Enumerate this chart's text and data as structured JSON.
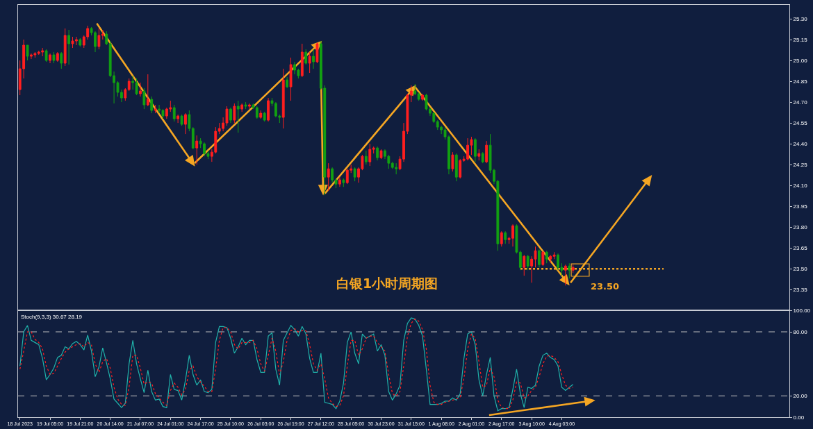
{
  "chart_data": [
    {
      "type": "candlestick",
      "categories": [
        null,
        null,
        null,
        null,
        null,
        null,
        null,
        null,
        null,
        null,
        null,
        null,
        null,
        null,
        null,
        null,
        null,
        null,
        null,
        null,
        null,
        null,
        null,
        null,
        null,
        null,
        null,
        null,
        null,
        null,
        null,
        null,
        null,
        null,
        null,
        null,
        null,
        null,
        null,
        null,
        null,
        null,
        null,
        null,
        null,
        null,
        null,
        null,
        null,
        null,
        null,
        null,
        null,
        null,
        null,
        null,
        null,
        null,
        null,
        null,
        null,
        null,
        null,
        null,
        null,
        null,
        null,
        null,
        null,
        null,
        null,
        null,
        null,
        null,
        null,
        null,
        null,
        null,
        null,
        null,
        null,
        null,
        null,
        null,
        null,
        null,
        null,
        null,
        null,
        null,
        null,
        null,
        null,
        null,
        null,
        null,
        null,
        null,
        null,
        null,
        null,
        null,
        null,
        null,
        null,
        null,
        null,
        null,
        null,
        null,
        null,
        null,
        null,
        null,
        null,
        null,
        null,
        null,
        null,
        null,
        null,
        null,
        null,
        null,
        null,
        null,
        null,
        null,
        null,
        null,
        null,
        null,
        null,
        null,
        null,
        null,
        null,
        null,
        null,
        null,
        null,
        null,
        null,
        null,
        null,
        null,
        null,
        null,
        null,
        null,
        null,
        null,
        null,
        null,
        null,
        null,
        null,
        null,
        null,
        null,
        null,
        null,
        null,
        null,
        null,
        null,
        null,
        null,
        null,
        null,
        null,
        null,
        null,
        null,
        null,
        null,
        null,
        null,
        null,
        null,
        null,
        null,
        null,
        null,
        null,
        null,
        null,
        null,
        null,
        null,
        null,
        null,
        null,
        null,
        null,
        null,
        null,
        null,
        null,
        null,
        null,
        null,
        null,
        null,
        null
      ],
      "ohlc": [
        [
          24.79,
          25.0,
          24.75,
          24.94
        ],
        [
          24.94,
          25.15,
          24.87,
          25.11
        ],
        [
          25.11,
          25.11,
          25.0,
          25.03
        ],
        [
          25.03,
          25.05,
          25.01,
          25.04
        ],
        [
          25.04,
          25.06,
          25.02,
          25.05
        ],
        [
          25.05,
          25.07,
          25.04,
          25.06
        ],
        [
          25.06,
          25.09,
          25.03,
          25.07
        ],
        [
          25.07,
          25.08,
          24.99,
          25.0
        ],
        [
          25.0,
          25.05,
          24.98,
          25.04
        ],
        [
          25.04,
          25.06,
          24.98,
          25.0
        ],
        [
          25.0,
          25.06,
          24.99,
          25.05
        ],
        [
          25.05,
          25.06,
          24.94,
          24.98
        ],
        [
          24.98,
          25.23,
          24.96,
          25.18
        ],
        [
          25.18,
          25.22,
          24.97,
          25.12
        ],
        [
          25.12,
          25.17,
          25.09,
          25.14
        ],
        [
          25.14,
          25.17,
          25.11,
          25.15
        ],
        [
          25.15,
          25.16,
          25.1,
          25.11
        ],
        [
          25.11,
          25.18,
          25.09,
          25.17
        ],
        [
          25.17,
          25.25,
          25.15,
          25.23
        ],
        [
          25.23,
          25.24,
          25.18,
          25.2
        ],
        [
          25.2,
          25.21,
          25.06,
          25.1
        ],
        [
          25.1,
          25.23,
          25.08,
          25.18
        ],
        [
          25.18,
          25.22,
          25.15,
          25.19
        ],
        [
          25.19,
          25.21,
          25.11,
          25.12
        ],
        [
          25.12,
          25.14,
          24.88,
          24.89
        ],
        [
          24.89,
          24.92,
          24.69,
          24.84
        ],
        [
          24.84,
          24.85,
          24.74,
          24.77
        ],
        [
          24.77,
          24.79,
          24.7,
          24.73
        ],
        [
          24.73,
          24.8,
          24.71,
          24.79
        ],
        [
          24.79,
          24.87,
          24.78,
          24.85
        ],
        [
          24.85,
          24.89,
          24.79,
          24.84
        ],
        [
          24.84,
          24.87,
          24.75,
          24.76
        ],
        [
          24.76,
          24.84,
          24.74,
          24.78
        ],
        [
          24.78,
          24.8,
          24.65,
          24.68
        ],
        [
          24.68,
          24.9,
          24.67,
          24.72
        ],
        [
          24.72,
          24.74,
          24.62,
          24.64
        ],
        [
          24.64,
          24.68,
          24.62,
          24.65
        ],
        [
          24.65,
          24.68,
          24.62,
          24.64
        ],
        [
          24.64,
          24.65,
          24.58,
          24.6
        ],
        [
          24.6,
          24.66,
          24.58,
          24.65
        ],
        [
          24.65,
          24.71,
          24.63,
          24.66
        ],
        [
          24.66,
          24.68,
          24.56,
          24.58
        ],
        [
          24.58,
          24.61,
          24.55,
          24.6
        ],
        [
          24.6,
          24.61,
          24.53,
          24.54
        ],
        [
          24.54,
          24.62,
          24.47,
          24.61
        ],
        [
          24.61,
          24.64,
          24.49,
          24.51
        ],
        [
          24.51,
          24.52,
          24.36,
          24.37
        ],
        [
          24.37,
          24.46,
          24.25,
          24.42
        ],
        [
          24.42,
          24.44,
          24.37,
          24.4
        ],
        [
          24.4,
          24.41,
          24.31,
          24.33
        ],
        [
          24.33,
          24.35,
          24.29,
          24.31
        ],
        [
          24.31,
          24.36,
          24.27,
          24.34
        ],
        [
          24.34,
          24.52,
          24.33,
          24.49
        ],
        [
          24.49,
          24.55,
          24.47,
          24.51
        ],
        [
          24.51,
          24.59,
          24.49,
          24.55
        ],
        [
          24.55,
          24.67,
          24.53,
          24.65
        ],
        [
          24.65,
          24.66,
          24.55,
          24.57
        ],
        [
          24.57,
          24.69,
          24.55,
          24.67
        ],
        [
          24.67,
          24.71,
          24.48,
          24.65
        ],
        [
          24.65,
          24.69,
          24.63,
          24.68
        ],
        [
          24.68,
          24.7,
          24.65,
          24.67
        ],
        [
          24.67,
          24.69,
          24.65,
          24.68
        ],
        [
          24.68,
          24.69,
          24.65,
          24.66
        ],
        [
          24.66,
          24.67,
          24.58,
          24.59
        ],
        [
          24.59,
          24.64,
          24.58,
          24.62
        ],
        [
          24.62,
          24.63,
          24.56,
          24.57
        ],
        [
          24.57,
          24.73,
          24.56,
          24.71
        ],
        [
          24.71,
          24.73,
          24.67,
          24.69
        ],
        [
          24.69,
          24.7,
          24.59,
          24.6
        ],
        [
          24.6,
          24.61,
          24.55,
          24.59
        ],
        [
          24.59,
          24.94,
          24.51,
          24.86
        ],
        [
          24.86,
          24.88,
          24.8,
          24.81
        ],
        [
          24.81,
          25.02,
          24.71,
          24.97
        ],
        [
          24.97,
          24.99,
          24.9,
          24.93
        ],
        [
          24.93,
          24.94,
          24.87,
          24.89
        ],
        [
          24.89,
          25.12,
          24.88,
          25.06
        ],
        [
          25.06,
          25.08,
          24.97,
          24.98
        ],
        [
          24.98,
          25.06,
          24.91,
          25.03
        ],
        [
          25.03,
          25.08,
          24.94,
          24.99
        ],
        [
          24.99,
          25.13,
          24.98,
          25.12
        ],
        [
          25.12,
          25.14,
          24.79,
          24.8
        ],
        [
          24.8,
          24.82,
          24.03,
          24.16
        ],
        [
          24.16,
          24.26,
          24.06,
          24.22
        ],
        [
          24.22,
          24.23,
          24.12,
          24.14
        ],
        [
          24.14,
          24.15,
          24.08,
          24.11
        ],
        [
          24.11,
          24.16,
          24.09,
          24.14
        ],
        [
          24.14,
          24.15,
          24.09,
          24.12
        ],
        [
          24.12,
          24.22,
          24.11,
          24.21
        ],
        [
          24.21,
          24.25,
          24.19,
          24.22
        ],
        [
          24.22,
          24.23,
          24.13,
          24.16
        ],
        [
          24.16,
          24.23,
          24.12,
          24.22
        ],
        [
          24.22,
          24.32,
          24.21,
          24.31
        ],
        [
          24.31,
          24.35,
          24.25,
          24.27
        ],
        [
          24.27,
          24.4,
          24.24,
          24.36
        ],
        [
          24.36,
          24.38,
          24.33,
          24.37
        ],
        [
          24.37,
          24.38,
          24.28,
          24.3
        ],
        [
          24.3,
          24.36,
          24.29,
          24.35
        ],
        [
          24.35,
          24.36,
          24.29,
          24.31
        ],
        [
          24.31,
          24.32,
          24.22,
          24.26
        ],
        [
          24.26,
          24.27,
          24.22,
          24.23
        ],
        [
          24.23,
          24.26,
          24.18,
          24.22
        ],
        [
          24.22,
          24.31,
          24.21,
          24.29
        ],
        [
          24.29,
          24.55,
          24.27,
          24.49
        ],
        [
          24.49,
          24.76,
          24.47,
          24.75
        ],
        [
          24.75,
          24.82,
          24.7,
          24.78
        ],
        [
          24.78,
          24.83,
          24.75,
          24.76
        ],
        [
          24.76,
          24.77,
          24.71,
          24.72
        ],
        [
          24.72,
          24.76,
          24.71,
          24.75
        ],
        [
          24.75,
          24.76,
          24.64,
          24.65
        ],
        [
          24.65,
          24.66,
          24.6,
          24.62
        ],
        [
          24.62,
          24.63,
          24.55,
          24.56
        ],
        [
          24.56,
          24.57,
          24.5,
          24.52
        ],
        [
          24.52,
          24.53,
          24.47,
          24.5
        ],
        [
          24.5,
          24.52,
          24.43,
          24.45
        ],
        [
          24.45,
          24.46,
          24.18,
          24.22
        ],
        [
          24.22,
          24.34,
          24.2,
          24.32
        ],
        [
          24.32,
          24.33,
          24.13,
          24.16
        ],
        [
          24.16,
          24.29,
          24.15,
          24.28
        ],
        [
          24.28,
          24.31,
          24.27,
          24.29
        ],
        [
          24.29,
          24.44,
          24.28,
          24.39
        ],
        [
          24.39,
          24.45,
          24.32,
          24.43
        ],
        [
          24.43,
          24.44,
          24.27,
          24.31
        ],
        [
          24.31,
          24.36,
          24.28,
          24.33
        ],
        [
          24.33,
          24.34,
          24.26,
          24.27
        ],
        [
          24.27,
          24.42,
          24.26,
          24.39
        ],
        [
          24.39,
          24.47,
          24.19,
          24.21
        ],
        [
          24.21,
          24.22,
          24.11,
          24.13
        ],
        [
          24.13,
          24.14,
          23.63,
          23.68
        ],
        [
          23.68,
          23.77,
          23.66,
          23.76
        ],
        [
          23.76,
          23.77,
          23.68,
          23.71
        ],
        [
          23.71,
          23.73,
          23.68,
          23.72
        ],
        [
          23.72,
          23.82,
          23.66,
          23.81
        ],
        [
          23.81,
          23.82,
          23.61,
          23.62
        ],
        [
          23.62,
          23.63,
          23.49,
          23.51
        ],
        [
          23.51,
          23.6,
          23.45,
          23.59
        ],
        [
          23.59,
          23.6,
          23.49,
          23.52
        ],
        [
          23.52,
          23.59,
          23.4,
          23.57
        ],
        [
          23.57,
          23.66,
          23.51,
          23.63
        ],
        [
          23.63,
          23.64,
          23.51,
          23.53
        ],
        [
          23.53,
          23.63,
          23.52,
          23.62
        ],
        [
          23.62,
          23.63,
          23.54,
          23.57
        ],
        [
          23.57,
          23.6,
          23.54,
          23.59
        ],
        [
          23.59,
          23.62,
          23.57,
          23.6
        ],
        [
          23.6,
          23.61,
          23.49,
          23.51
        ],
        [
          23.51,
          23.54,
          23.45,
          23.49
        ],
        [
          23.49,
          23.53,
          23.38,
          23.52
        ],
        [
          23.52,
          23.54,
          23.43,
          23.49
        ],
        [
          23.49,
          23.53,
          23.47,
          23.51
        ],
        null,
        null,
        null,
        null,
        null,
        null,
        null,
        null,
        null,
        null,
        null,
        null,
        null,
        null,
        null,
        null,
        null,
        null,
        null,
        null,
        null,
        null,
        null,
        null,
        null,
        null,
        null,
        null,
        null,
        null,
        null,
        null,
        null,
        null,
        null,
        null,
        null,
        null,
        null,
        null,
        null,
        null,
        null,
        null,
        null,
        null,
        null,
        null,
        null,
        null,
        null,
        null,
        null,
        null,
        null,
        null,
        null
      ],
      "ylim": [
        23.2,
        25.4
      ],
      "yticks": [
        {
          "value": 25.3,
          "label": "25.30"
        },
        {
          "value": 25.15,
          "label": "25.15"
        },
        {
          "value": 25.0,
          "label": "25.00"
        },
        {
          "value": 24.85,
          "label": "24.85"
        },
        {
          "value": 24.7,
          "label": "24.70"
        },
        {
          "value": 24.55,
          "label": "24.55"
        },
        {
          "value": 24.4,
          "label": "24.40"
        },
        {
          "value": 24.25,
          "label": "24.25"
        },
        {
          "value": 24.1,
          "label": "24.10"
        },
        {
          "value": 23.95,
          "label": "23.95"
        },
        {
          "value": 23.8,
          "label": "23.80"
        },
        {
          "value": 23.65,
          "label": "23.65"
        },
        {
          "value": 23.5,
          "label": "23.50"
        },
        {
          "value": 23.35,
          "label": "23.35"
        }
      ],
      "tick_labels": "y",
      "ref_lines": [
        {
          "axis": "y",
          "value": 23.5,
          "label": "23.50",
          "color": "#f5a623",
          "line_style": "dotted"
        }
      ],
      "annotations": [
        "白银1小时周期图"
      ]
    },
    {
      "type": "line",
      "title": "Stoch(9,3,3) 30.67 28.19",
      "categories": [
        "18 Jul 2023",
        null,
        null,
        null,
        null,
        null,
        null,
        null,
        "19 Jul 05:00",
        null,
        null,
        null,
        null,
        null,
        null,
        null,
        "19 Jul 21:00",
        null,
        null,
        null,
        null,
        null,
        null,
        null,
        "20 Jul 14:00",
        null,
        null,
        null,
        null,
        null,
        null,
        null,
        "21 Jul 07:00",
        null,
        null,
        null,
        null,
        null,
        null,
        null,
        "24 Jul 01:00",
        null,
        null,
        null,
        null,
        null,
        null,
        null,
        "24 Jul 17:00",
        null,
        null,
        null,
        null,
        null,
        null,
        null,
        "25 Jul 10:00",
        null,
        null,
        null,
        null,
        null,
        null,
        null,
        "26 Jul 03:00",
        null,
        null,
        null,
        null,
        null,
        null,
        null,
        "26 Jul 19:00",
        null,
        null,
        null,
        null,
        null,
        null,
        null,
        "27 Jul 12:00",
        null,
        null,
        null,
        null,
        null,
        null,
        null,
        "28 Jul 05:00",
        null,
        null,
        null,
        null,
        null,
        null,
        null,
        "30 Jul 23:00",
        null,
        null,
        null,
        null,
        null,
        null,
        null,
        "31 Jul 15:00",
        null,
        null,
        null,
        null,
        null,
        null,
        null,
        "1 Aug 08:00",
        null,
        null,
        null,
        null,
        null,
        null,
        null,
        "2 Aug 01:00",
        null,
        null,
        null,
        null,
        null,
        null,
        null,
        "2 Aug 17:00",
        null,
        null,
        null,
        null,
        null,
        null,
        null,
        "3 Aug 10:00",
        null,
        null,
        null,
        null,
        null,
        null,
        null,
        "4 Aug 03:00",
        null,
        null,
        null,
        null,
        null,
        null,
        null,
        null,
        null,
        null,
        null,
        null,
        null,
        null,
        null,
        null,
        null,
        null,
        null,
        null,
        null,
        null,
        null,
        null,
        null,
        null,
        null,
        null,
        null,
        null,
        null,
        null,
        null,
        null,
        null,
        null,
        null,
        null,
        null,
        null,
        null,
        null,
        null,
        null,
        null,
        null,
        null,
        null,
        null,
        null,
        null,
        null,
        null,
        null,
        null,
        null,
        null,
        null,
        null,
        null
      ],
      "series": [
        {
          "color": "#20b2aa",
          "line_style": "solid",
          "values": [
            48,
            80,
            86,
            72,
            70,
            68,
            55,
            35,
            40,
            46,
            56,
            58,
            66,
            64,
            69,
            71,
            68,
            63,
            77,
            62,
            38,
            47,
            65,
            51,
            36,
            17,
            13,
            9,
            13,
            50,
            72,
            50,
            36,
            23,
            44,
            24,
            16,
            17,
            10,
            9,
            40,
            26,
            25,
            16,
            35,
            58,
            40,
            30,
            35,
            24,
            23,
            26,
            70,
            85,
            85,
            84,
            74,
            60,
            66,
            74,
            68,
            72,
            72,
            54,
            42,
            42,
            76,
            79,
            45,
            30,
            72,
            79,
            86,
            82,
            76,
            85,
            78,
            55,
            42,
            42,
            60,
            14,
            13,
            12,
            8,
            15,
            32,
            70,
            80,
            60,
            50,
            78,
            74,
            76,
            78,
            62,
            68,
            58,
            24,
            16,
            22,
            30,
            72,
            88,
            93,
            92,
            86,
            76,
            45,
            12,
            12,
            12,
            13,
            15,
            15,
            18,
            16,
            22,
            55,
            78,
            80,
            68,
            35,
            20,
            40,
            56,
            20,
            6,
            8,
            8,
            9,
            26,
            45,
            22,
            9,
            28,
            27,
            30,
            48,
            58,
            60,
            56,
            54,
            48,
            28,
            25,
            28,
            30.67,
            null,
            null,
            null,
            null,
            null,
            null,
            null,
            null,
            null,
            null,
            null,
            null,
            null,
            null,
            null,
            null,
            null,
            null,
            null,
            null,
            null,
            null,
            null,
            null,
            null,
            null,
            null,
            null,
            null,
            null,
            null,
            null,
            null,
            null,
            null,
            null,
            null,
            null,
            null,
            null,
            null,
            null,
            null,
            null,
            null,
            null,
            null,
            null,
            null,
            null,
            null,
            null,
            null,
            null,
            null,
            null,
            null
          ]
        },
        {
          "color": "#ff2020",
          "line_style": "dotted",
          "values": [
            45,
            62,
            80,
            80,
            73,
            70,
            64,
            48,
            40,
            41,
            48,
            55,
            61,
            64,
            66,
            68,
            69,
            66,
            70,
            68,
            50,
            42,
            52,
            55,
            46,
            28,
            17,
            12,
            11,
            28,
            58,
            58,
            46,
            31,
            33,
            32,
            22,
            18,
            14,
            11,
            25,
            32,
            28,
            21,
            26,
            44,
            48,
            38,
            33,
            29,
            24,
            24,
            45,
            72,
            84,
            84,
            80,
            68,
            64,
            70,
            70,
            70,
            72,
            64,
            50,
            43,
            58,
            74,
            62,
            40,
            52,
            72,
            81,
            83,
            80,
            81,
            81,
            68,
            50,
            44,
            50,
            36,
            18,
            13,
            10,
            11,
            20,
            48,
            72,
            72,
            58,
            64,
            74,
            76,
            76,
            70,
            66,
            62,
            40,
            22,
            20,
            24,
            48,
            76,
            88,
            92,
            90,
            82,
            64,
            30,
            14,
            12,
            12,
            14,
            15,
            16,
            17,
            19,
            36,
            64,
            78,
            74,
            52,
            28,
            30,
            46,
            38,
            16,
            9,
            8,
            8,
            16,
            33,
            32,
            18,
            20,
            25,
            28,
            38,
            50,
            57,
            58,
            56,
            52,
            40,
            30,
            27,
            28.19,
            null,
            null,
            null,
            null,
            null,
            null,
            null,
            null,
            null,
            null,
            null,
            null,
            null,
            null,
            null,
            null,
            null,
            null,
            null,
            null,
            null,
            null,
            null,
            null,
            null,
            null,
            null,
            null,
            null,
            null,
            null,
            null,
            null,
            null,
            null,
            null,
            null,
            null,
            null,
            null,
            null,
            null,
            null,
            null,
            null,
            null,
            null,
            null,
            null,
            null,
            null,
            null,
            null,
            null,
            null,
            null,
            null
          ]
        }
      ],
      "marker": "none",
      "ylim": [
        0,
        100
      ],
      "yticks": [
        {
          "value": 100,
          "label": "100.00"
        },
        {
          "value": 80,
          "label": "80.00"
        },
        {
          "value": 20,
          "label": "20.00"
        },
        {
          "value": 0,
          "label": "0.00"
        }
      ],
      "ref_lines": [
        {
          "axis": "y",
          "value": 80,
          "color": "#c0c0c0",
          "line_style": "dashed"
        },
        {
          "axis": "y",
          "value": 20,
          "color": "#c0c0c0",
          "line_style": "dashed"
        }
      ]
    }
  ]
}
